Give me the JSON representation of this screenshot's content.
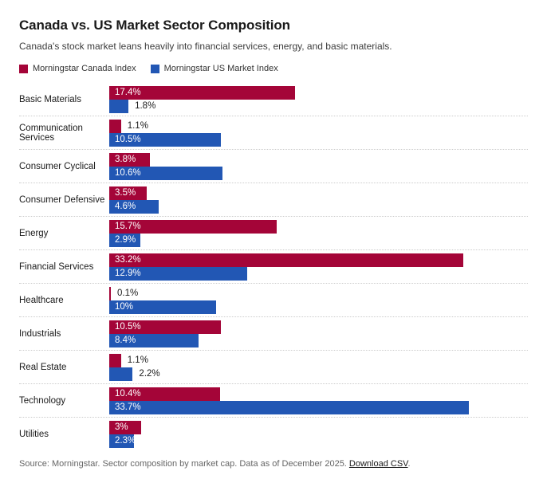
{
  "header": {
    "title": "Canada vs. US Market Sector Composition",
    "subtitle": "Canada's stock market leans heavily into financial services, energy, and basic materials."
  },
  "legend": [
    {
      "label": "Morningstar Canada Index",
      "color": "#a40538"
    },
    {
      "label": "Morningstar US Market Index",
      "color": "#2257b4"
    }
  ],
  "chart_data": {
    "type": "bar",
    "orientation": "horizontal",
    "title": "Canada vs. US Market Sector Composition",
    "xlabel": "",
    "ylabel": "",
    "xlim": [
      0,
      33.7
    ],
    "grid": false,
    "legend_position": "top",
    "categories": [
      "Basic Materials",
      "Communication Services",
      "Consumer Cyclical",
      "Consumer Defensive",
      "Energy",
      "Financial Services",
      "Healthcare",
      "Industrials",
      "Real Estate",
      "Technology",
      "Utilities"
    ],
    "series": [
      {
        "name": "Morningstar Canada Index",
        "color": "#a40538",
        "values": [
          17.4,
          1.1,
          3.8,
          3.5,
          15.7,
          33.2,
          0.1,
          10.5,
          1.1,
          10.4,
          3.0
        ],
        "labels": [
          "17.4%",
          "1.1%",
          "3.8%",
          "3.5%",
          "15.7%",
          "33.2%",
          "0.1%",
          "10.5%",
          "1.1%",
          "10.4%",
          "3%"
        ]
      },
      {
        "name": "Morningstar US Market Index",
        "color": "#2257b4",
        "values": [
          1.8,
          10.5,
          10.6,
          4.6,
          2.9,
          12.9,
          10.0,
          8.4,
          2.2,
          33.7,
          2.3
        ],
        "labels": [
          "1.8%",
          "10.5%",
          "10.6%",
          "4.6%",
          "2.9%",
          "12.9%",
          "10%",
          "8.4%",
          "2.2%",
          "33.7%",
          "2.3%"
        ]
      }
    ]
  },
  "footer": {
    "source_text": "Source: Morningstar. Sector composition by market cap. Data as of December 2025. ",
    "link_label": "Download CSV",
    "after_link": "."
  }
}
